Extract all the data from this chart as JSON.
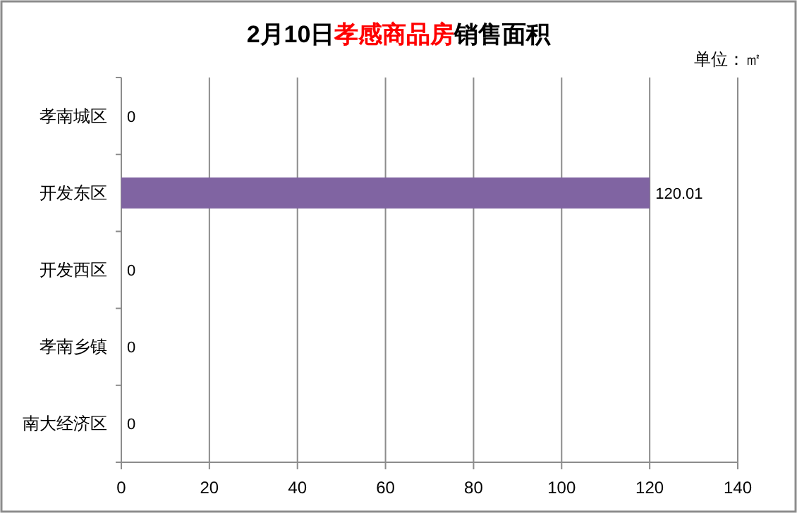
{
  "chart_data": {
    "type": "bar",
    "orientation": "horizontal",
    "title": "2月10日孝感商品房销售面积",
    "annotations": [
      "单位：㎡"
    ],
    "categories": [
      "孝南城区",
      "开发东区",
      "开发西区",
      "孝南乡镇",
      "南大经济区"
    ],
    "values": [
      0,
      120.01,
      0,
      0,
      0
    ],
    "color": "#8064a2",
    "xlim": [
      0,
      140
    ],
    "xticks": [
      0,
      20,
      40,
      60,
      80,
      100,
      120,
      140
    ],
    "grid": "x",
    "data_labels": true
  }
}
